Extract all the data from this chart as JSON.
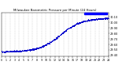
{
  "title": "Milwaukee Barometric Pressure per Minute (24 Hours)",
  "title_fontsize": 2.8,
  "dot_color": "#0000cc",
  "dot_size": 0.3,
  "highlight_color": "#0000ff",
  "background_color": "#ffffff",
  "grid_color": "#888888",
  "ylim": [
    29.38,
    30.18
  ],
  "xlim": [
    0,
    1440
  ],
  "ylabel_fontsize": 2.5,
  "xlabel_fontsize": 2.3,
  "ytick_values": [
    29.4,
    29.5,
    29.6,
    29.7,
    29.8,
    29.9,
    30.0,
    30.1
  ],
  "num_points": 1440,
  "seed": 42,
  "pressure_start": 29.47,
  "pressure_end": 30.08
}
